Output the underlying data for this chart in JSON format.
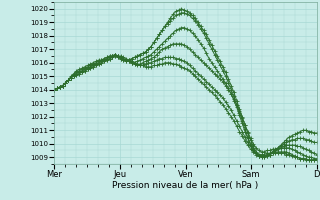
{
  "xlabel": "Pression niveau de la mer( hPa )",
  "ylim": [
    1008.5,
    1020.5
  ],
  "yticks": [
    1009,
    1010,
    1011,
    1012,
    1013,
    1014,
    1015,
    1016,
    1017,
    1018,
    1019,
    1020
  ],
  "xtick_labels": [
    "Mer",
    "Jeu",
    "Ven",
    "Sam",
    "D"
  ],
  "xtick_positions": [
    0,
    48,
    96,
    144,
    192
  ],
  "background_color": "#c8ece8",
  "grid_color": "#a8d8d4",
  "line_color": "#2d6e2d",
  "lines": [
    {
      "y": [
        1014.0,
        1014.1,
        1014.2,
        1014.3,
        1014.5,
        1014.7,
        1014.9,
        1015.0,
        1015.1,
        1015.2,
        1015.3,
        1015.4,
        1015.5,
        1015.6,
        1015.7,
        1015.8,
        1015.9,
        1016.0,
        1016.1,
        1016.2,
        1016.3,
        1016.4,
        1016.5,
        1016.4,
        1016.3,
        1016.2,
        1016.1,
        1016.2,
        1016.3,
        1016.4,
        1016.5,
        1016.6,
        1016.7,
        1016.8,
        1017.0,
        1017.2,
        1017.5,
        1017.8,
        1018.1,
        1018.4,
        1018.7,
        1019.0,
        1019.3,
        1019.6,
        1019.8,
        1019.9,
        1020.0,
        1019.9,
        1019.8,
        1019.7,
        1019.5,
        1019.3,
        1019.0,
        1018.7,
        1018.4,
        1018.1,
        1017.7,
        1017.3,
        1016.9,
        1016.5,
        1016.1,
        1015.7,
        1015.3,
        1014.8,
        1014.3,
        1013.8,
        1013.2,
        1012.6,
        1012.0,
        1011.4,
        1010.8,
        1010.3,
        1009.8,
        1009.4,
        1009.1,
        1009.0,
        1009.0,
        1009.1,
        1009.2,
        1009.3,
        1009.5,
        1009.7,
        1009.9,
        1010.1,
        1010.3,
        1010.5,
        1010.6,
        1010.7,
        1010.8,
        1010.9,
        1011.0,
        1011.0,
        1010.9,
        1010.9,
        1010.8,
        1010.8
      ]
    },
    {
      "y": [
        1014.0,
        1014.1,
        1014.2,
        1014.3,
        1014.5,
        1014.7,
        1014.9,
        1015.0,
        1015.1,
        1015.2,
        1015.3,
        1015.4,
        1015.5,
        1015.6,
        1015.7,
        1015.8,
        1015.9,
        1016.0,
        1016.1,
        1016.2,
        1016.3,
        1016.4,
        1016.5,
        1016.4,
        1016.3,
        1016.2,
        1016.1,
        1016.2,
        1016.3,
        1016.4,
        1016.5,
        1016.6,
        1016.7,
        1016.8,
        1017.0,
        1017.2,
        1017.5,
        1017.8,
        1018.1,
        1018.4,
        1018.7,
        1018.9,
        1019.1,
        1019.3,
        1019.5,
        1019.6,
        1019.7,
        1019.7,
        1019.6,
        1019.5,
        1019.3,
        1019.1,
        1018.8,
        1018.5,
        1018.2,
        1017.8,
        1017.4,
        1017.0,
        1016.6,
        1016.2,
        1015.8,
        1015.4,
        1015.0,
        1014.5,
        1014.0,
        1013.5,
        1012.9,
        1012.3,
        1011.7,
        1011.1,
        1010.5,
        1010.0,
        1009.6,
        1009.3,
        1009.1,
        1009.0,
        1009.0,
        1009.1,
        1009.2,
        1009.4,
        1009.5,
        1009.7,
        1009.8,
        1010.0,
        1010.1,
        1010.2,
        1010.3,
        1010.3,
        1010.4,
        1010.4,
        1010.4,
        1010.3,
        1010.3,
        1010.2,
        1010.1,
        1010.1
      ]
    },
    {
      "y": [
        1014.0,
        1014.1,
        1014.2,
        1014.3,
        1014.5,
        1014.7,
        1014.9,
        1015.1,
        1015.2,
        1015.3,
        1015.4,
        1015.5,
        1015.6,
        1015.7,
        1015.8,
        1015.9,
        1016.0,
        1016.1,
        1016.2,
        1016.3,
        1016.4,
        1016.5,
        1016.6,
        1016.5,
        1016.4,
        1016.3,
        1016.2,
        1016.1,
        1016.0,
        1016.0,
        1016.1,
        1016.2,
        1016.3,
        1016.4,
        1016.5,
        1016.6,
        1016.8,
        1017.0,
        1017.2,
        1017.4,
        1017.6,
        1017.8,
        1018.0,
        1018.2,
        1018.4,
        1018.5,
        1018.6,
        1018.6,
        1018.5,
        1018.4,
        1018.2,
        1018.0,
        1017.7,
        1017.4,
        1017.1,
        1016.7,
        1016.3,
        1016.0,
        1015.7,
        1015.4,
        1015.1,
        1014.8,
        1014.5,
        1014.1,
        1013.7,
        1013.2,
        1012.7,
        1012.1,
        1011.5,
        1010.9,
        1010.4,
        1009.9,
        1009.5,
        1009.3,
        1009.1,
        1009.1,
        1009.1,
        1009.2,
        1009.3,
        1009.4,
        1009.5,
        1009.6,
        1009.7,
        1009.8,
        1009.9,
        1009.9,
        1009.9,
        1009.9,
        1009.8,
        1009.8,
        1009.7,
        1009.6,
        1009.5,
        1009.4,
        1009.3,
        1009.2
      ]
    },
    {
      "y": [
        1014.0,
        1014.1,
        1014.2,
        1014.3,
        1014.5,
        1014.7,
        1014.9,
        1015.1,
        1015.2,
        1015.3,
        1015.4,
        1015.5,
        1015.6,
        1015.7,
        1015.8,
        1015.9,
        1016.0,
        1016.1,
        1016.2,
        1016.3,
        1016.4,
        1016.5,
        1016.6,
        1016.5,
        1016.4,
        1016.3,
        1016.2,
        1016.1,
        1016.0,
        1015.9,
        1015.9,
        1015.9,
        1016.0,
        1016.1,
        1016.2,
        1016.3,
        1016.4,
        1016.6,
        1016.8,
        1017.0,
        1017.1,
        1017.2,
        1017.3,
        1017.4,
        1017.4,
        1017.4,
        1017.4,
        1017.3,
        1017.2,
        1017.0,
        1016.8,
        1016.6,
        1016.4,
        1016.2,
        1016.0,
        1015.8,
        1015.6,
        1015.4,
        1015.2,
        1015.0,
        1014.8,
        1014.6,
        1014.3,
        1014.0,
        1013.7,
        1013.3,
        1012.9,
        1012.4,
        1011.9,
        1011.4,
        1010.9,
        1010.4,
        1010.0,
        1009.7,
        1009.5,
        1009.4,
        1009.4,
        1009.5,
        1009.5,
        1009.6,
        1009.6,
        1009.7,
        1009.7,
        1009.7,
        1009.7,
        1009.7,
        1009.6,
        1009.5,
        1009.4,
        1009.3,
        1009.2,
        1009.1,
        1009.0,
        1009.0,
        1008.9,
        1008.9
      ]
    },
    {
      "y": [
        1014.0,
        1014.1,
        1014.2,
        1014.3,
        1014.5,
        1014.7,
        1014.9,
        1015.1,
        1015.3,
        1015.4,
        1015.5,
        1015.6,
        1015.7,
        1015.8,
        1015.9,
        1016.0,
        1016.1,
        1016.2,
        1016.3,
        1016.4,
        1016.5,
        1016.5,
        1016.6,
        1016.5,
        1016.4,
        1016.3,
        1016.2,
        1016.1,
        1016.0,
        1015.9,
        1015.8,
        1015.8,
        1015.8,
        1015.9,
        1016.0,
        1016.0,
        1016.1,
        1016.2,
        1016.3,
        1016.3,
        1016.4,
        1016.4,
        1016.4,
        1016.4,
        1016.3,
        1016.3,
        1016.2,
        1016.1,
        1016.0,
        1015.8,
        1015.6,
        1015.4,
        1015.2,
        1015.0,
        1014.8,
        1014.6,
        1014.4,
        1014.2,
        1014.0,
        1013.8,
        1013.6,
        1013.4,
        1013.1,
        1012.8,
        1012.5,
        1012.1,
        1011.7,
        1011.3,
        1010.9,
        1010.5,
        1010.1,
        1009.8,
        1009.5,
        1009.3,
        1009.2,
        1009.2,
        1009.2,
        1009.3,
        1009.3,
        1009.4,
        1009.4,
        1009.4,
        1009.4,
        1009.4,
        1009.4,
        1009.3,
        1009.2,
        1009.1,
        1009.0,
        1008.9,
        1008.9,
        1008.9,
        1008.8,
        1008.8,
        1008.8,
        1008.8
      ]
    },
    {
      "y": [
        1014.0,
        1014.1,
        1014.2,
        1014.3,
        1014.5,
        1014.7,
        1015.0,
        1015.2,
        1015.4,
        1015.5,
        1015.6,
        1015.7,
        1015.8,
        1015.9,
        1016.0,
        1016.1,
        1016.2,
        1016.2,
        1016.3,
        1016.4,
        1016.5,
        1016.5,
        1016.6,
        1016.5,
        1016.5,
        1016.4,
        1016.3,
        1016.2,
        1016.1,
        1016.0,
        1015.9,
        1015.8,
        1015.8,
        1015.7,
        1015.7,
        1015.7,
        1015.8,
        1015.8,
        1015.9,
        1015.9,
        1016.0,
        1016.0,
        1016.0,
        1015.9,
        1015.9,
        1015.8,
        1015.7,
        1015.6,
        1015.5,
        1015.4,
        1015.2,
        1015.0,
        1014.8,
        1014.6,
        1014.4,
        1014.2,
        1014.0,
        1013.8,
        1013.6,
        1013.4,
        1013.1,
        1012.9,
        1012.6,
        1012.3,
        1012.0,
        1011.7,
        1011.3,
        1010.9,
        1010.6,
        1010.2,
        1009.9,
        1009.6,
        1009.4,
        1009.2,
        1009.1,
        1009.1,
        1009.1,
        1009.2,
        1009.2,
        1009.3,
        1009.3,
        1009.3,
        1009.3,
        1009.3,
        1009.2,
        1009.2,
        1009.1,
        1009.0,
        1009.0,
        1008.9,
        1008.9,
        1008.8,
        1008.8,
        1008.8,
        1008.8,
        1008.8
      ]
    }
  ]
}
